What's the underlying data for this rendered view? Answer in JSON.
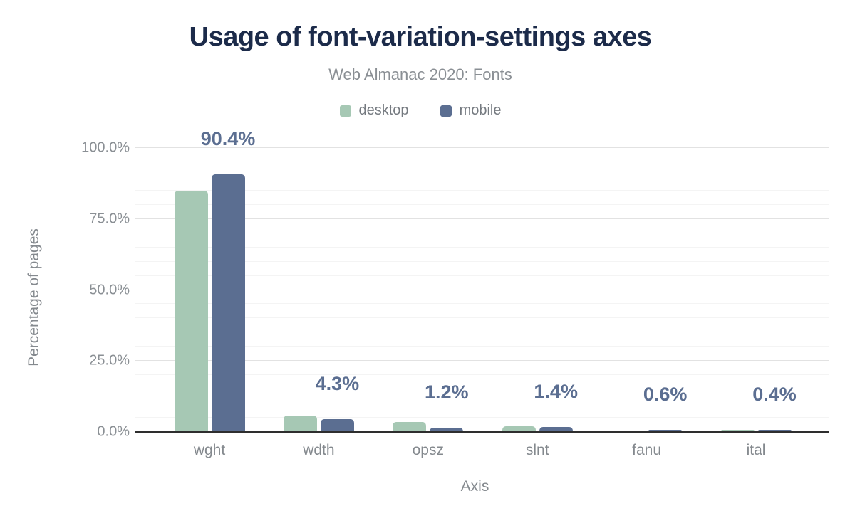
{
  "title": "Usage of font-variation-settings axes",
  "subtitle": "Web Almanac 2020: Fonts",
  "chart_data": {
    "type": "bar",
    "title": "Usage of font-variation-settings axes",
    "subtitle": "Web Almanac 2020: Fonts",
    "categories": [
      "wght",
      "wdth",
      "opsz",
      "slnt",
      "fanu",
      "ital"
    ],
    "series": [
      {
        "name": "desktop",
        "color": "#a6c8b4",
        "values": [
          84.7,
          5.4,
          3.3,
          1.7,
          0.3,
          0.5
        ]
      },
      {
        "name": "mobile",
        "color": "#5b6e91",
        "values": [
          90.4,
          4.3,
          1.2,
          1.4,
          0.6,
          0.4
        ]
      }
    ],
    "data_labels": {
      "series": "mobile",
      "values": [
        "90.4%",
        "4.3%",
        "1.2%",
        "1.4%",
        "0.6%",
        "0.4%"
      ],
      "color": "#5b6e91"
    },
    "xlabel": "Axis",
    "ylabel": "Percentage of pages",
    "ylim": [
      0,
      100
    ],
    "yticks": [
      {
        "v": 0,
        "label": "0.0%"
      },
      {
        "v": 25,
        "label": "25.0%"
      },
      {
        "v": 50,
        "label": "50.0%"
      },
      {
        "v": 75,
        "label": "75.0%"
      },
      {
        "v": 100,
        "label": "100.0%"
      }
    ],
    "minor_grid_step": 5,
    "grid": true,
    "legend_position": "top"
  },
  "colors": {
    "title_text": "#1c2b4a",
    "muted_text": "#84898e",
    "axis_line": "#2e2e2e",
    "major_grid": "#e2e2e2",
    "minor_grid": "#f4f4f4"
  }
}
